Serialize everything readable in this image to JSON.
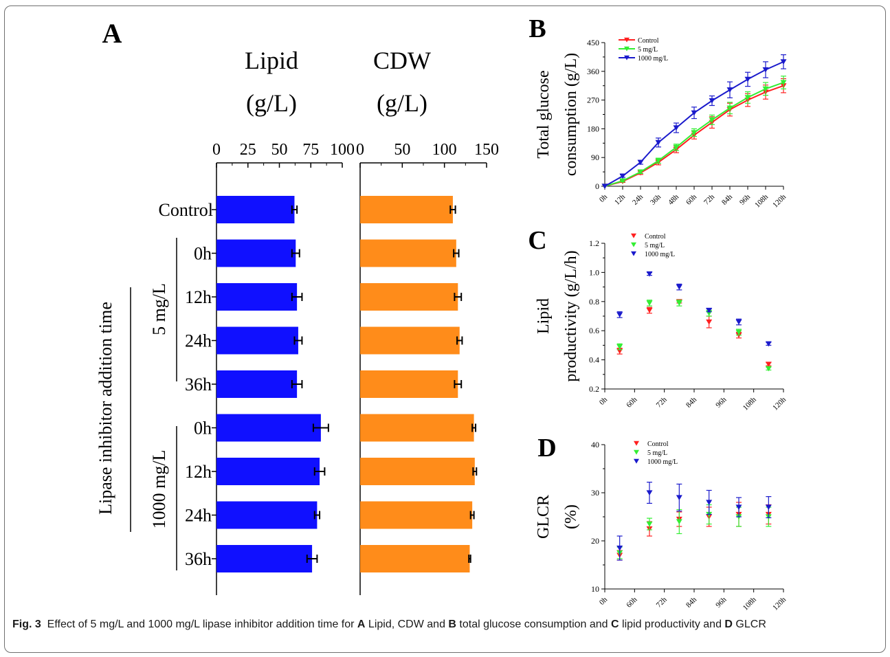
{
  "caption": {
    "fig_label": "Fig. 3",
    "part1": "Effect of 5 mg/L and 1000 mg/L lipase inhibitor addition time for ",
    "a": "A",
    "part2": " Lipid, CDW and ",
    "b": "B",
    "part3": " total glucose consumption and ",
    "c": "C",
    "part4": " lipid productivity and ",
    "d": "D",
    "part5": " GLCR"
  },
  "colors": {
    "blue": "#1010ff",
    "orange": "#ff8c1a",
    "red": "#ff2020",
    "green": "#33ee33",
    "navy": "#1a1acc"
  },
  "chart_data": [
    {
      "panel": "A",
      "type": "bar",
      "orientation": "horizontal",
      "categories": [
        "Control",
        "0h",
        "12h",
        "24h",
        "36h",
        "0h",
        "12h",
        "24h",
        "36h"
      ],
      "group_labels": [
        "5 mg/L",
        "1000 mg/L"
      ],
      "ylabel": "Lipase inhibitor addition time",
      "subplots": [
        {
          "title_line1": "Lipid",
          "title_line2": "(g/L)",
          "xlim": [
            0,
            100
          ],
          "ticks": [
            "0",
            "25",
            "50",
            "75",
            "100"
          ],
          "values": [
            62,
            63,
            64,
            65,
            64,
            83,
            82,
            80,
            76
          ],
          "errors": [
            2,
            3,
            4,
            3,
            4,
            6,
            4,
            2,
            4
          ],
          "color": "#1010ff"
        },
        {
          "title_line1": "CDW",
          "title_line2": "(g/L)",
          "xlim": [
            0,
            150
          ],
          "ticks": [
            "0",
            "50",
            "100",
            "150"
          ],
          "values": [
            110,
            114,
            116,
            118,
            116,
            135,
            136,
            133,
            130
          ],
          "errors": [
            3,
            3,
            4,
            3,
            4,
            2,
            2,
            2,
            1
          ],
          "color": "#ff8c1a"
        }
      ]
    },
    {
      "panel": "B",
      "type": "line",
      "x": [
        "0h",
        "12h",
        "24h",
        "36h",
        "48h",
        "60h",
        "72h",
        "84h",
        "96h",
        "108h",
        "120h"
      ],
      "ylabel_line1": "Total glucose",
      "ylabel_line2": "consumption (g/L)",
      "ylim": [
        0,
        450
      ],
      "yticks": [
        "0",
        "90",
        "180",
        "270",
        "360",
        "450"
      ],
      "series": [
        {
          "name": "Control",
          "color": "#ff2020",
          "values": [
            0,
            15,
            42,
            75,
            115,
            160,
            200,
            240,
            270,
            295,
            315
          ],
          "errors": [
            0,
            3,
            5,
            8,
            10,
            12,
            18,
            20,
            20,
            22,
            22
          ]
        },
        {
          "name": "5 mg/L",
          "color": "#33ee33",
          "values": [
            0,
            17,
            45,
            80,
            122,
            168,
            208,
            245,
            278,
            305,
            325
          ],
          "errors": [
            0,
            3,
            5,
            8,
            10,
            12,
            15,
            18,
            18,
            20,
            20
          ]
        },
        {
          "name": "1000 mg/L",
          "color": "#1a1acc",
          "values": [
            0,
            32,
            75,
            137,
            183,
            230,
            268,
            302,
            335,
            365,
            390
          ],
          "errors": [
            0,
            4,
            6,
            14,
            15,
            18,
            15,
            25,
            22,
            25,
            22
          ]
        }
      ]
    },
    {
      "panel": "C",
      "type": "scatter",
      "x": [
        "0h",
        "60h",
        "72h",
        "84h",
        "96h",
        "108h",
        "120h"
      ],
      "ylabel_line1": "Lipid",
      "ylabel_line2": "productivity (g/L/h)",
      "ylim": [
        0.2,
        1.2
      ],
      "yticks": [
        "0.2",
        "0.4",
        "0.6",
        "0.8",
        "1.0",
        "1.2"
      ],
      "series": [
        {
          "name": "Control",
          "color": "#ff2020",
          "values": [
            0.46,
            0.74,
            0.8,
            0.66,
            0.57,
            0.37
          ],
          "errors": [
            0.02,
            0.02,
            0.01,
            0.04,
            0.02,
            0.01
          ]
        },
        {
          "name": "5 mg/L",
          "color": "#33ee33",
          "values": [
            0.49,
            0.79,
            0.79,
            0.72,
            0.59,
            0.34
          ],
          "errors": [
            0.02,
            0.02,
            0.02,
            0.02,
            0.02,
            0.01
          ]
        },
        {
          "name": "1000 mg/L",
          "color": "#1a1acc",
          "values": [
            0.71,
            0.99,
            0.9,
            0.74,
            0.66,
            0.51
          ],
          "errors": [
            0.02,
            0.01,
            0.02,
            0.01,
            0.02,
            0.01
          ]
        }
      ]
    },
    {
      "panel": "D",
      "type": "scatter",
      "x": [
        "0h",
        "60h",
        "72h",
        "84h",
        "96h",
        "108h",
        "120h"
      ],
      "ylabel_line1": "GLCR",
      "ylabel_line2": "(%)",
      "ylim": [
        10,
        40
      ],
      "yticks": [
        "10",
        "20",
        "30",
        "40"
      ],
      "series": [
        {
          "name": "Control",
          "color": "#ff2020",
          "values": [
            17,
            22.5,
            24.5,
            25,
            25.5,
            25.5
          ],
          "errors": [
            1,
            1.5,
            1.5,
            2,
            2.5,
            2
          ]
        },
        {
          "name": "5 mg/L",
          "color": "#33ee33",
          "values": [
            17.5,
            23.5,
            24,
            25.5,
            25,
            25
          ],
          "errors": [
            1.2,
            1.2,
            2.5,
            2,
            2,
            2
          ]
        },
        {
          "name": "1000 mg/L",
          "color": "#1a1acc",
          "values": [
            18.5,
            30,
            29,
            28,
            27,
            27
          ],
          "errors": [
            2.5,
            2.2,
            2.8,
            2.5,
            2,
            2.2
          ]
        }
      ]
    }
  ],
  "panel_labels": [
    "A",
    "B",
    "C",
    "D"
  ]
}
